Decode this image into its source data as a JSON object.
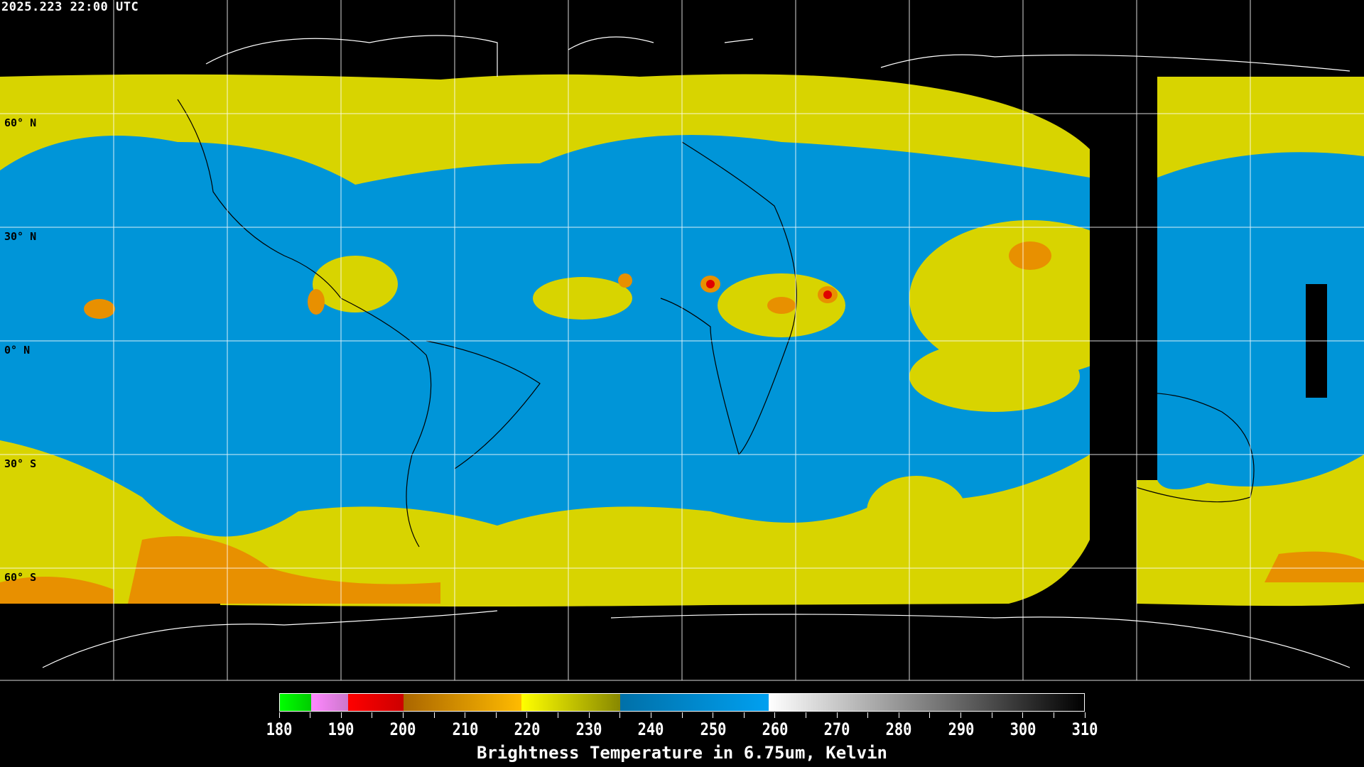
{
  "timestamp": "2025.223 22:00 UTC",
  "map": {
    "projection": "equirectangular",
    "gridlines": "30 degree",
    "lat_labels": [
      "60° N",
      "30° N",
      "0° N",
      "30° S",
      "60° S"
    ],
    "colors": {
      "background": "#000000",
      "grid": "#ffffff",
      "coast_land": "#ffffff",
      "coast_data": "#000000",
      "moist": "#0095d8",
      "dry": "#d8d400",
      "cold": "#e89000",
      "coldest": "#e00000"
    }
  },
  "colorbar": {
    "title": "Brightness Temperature in 6.75um, Kelvin",
    "ticks": [
      "180",
      "190",
      "200",
      "210",
      "220",
      "230",
      "240",
      "250",
      "260",
      "270",
      "280",
      "290",
      "300",
      "310"
    ],
    "range": [
      180,
      310
    ],
    "segments": [
      {
        "from": 180,
        "to": 185,
        "colors": [
          "#00ff00",
          "#00cc00"
        ]
      },
      {
        "from": 185,
        "to": 191,
        "colors": [
          "#ff88ff",
          "#cc77cc"
        ]
      },
      {
        "from": 191,
        "to": 200,
        "colors": [
          "#ff0000",
          "#cc0000"
        ]
      },
      {
        "from": 200,
        "to": 219,
        "colors": [
          "#aa6600",
          "#ffbb00"
        ]
      },
      {
        "from": 219,
        "to": 235,
        "colors": [
          "#ffff00",
          "#888800"
        ]
      },
      {
        "from": 235,
        "to": 259,
        "colors": [
          "#0070a8",
          "#00a0f0"
        ]
      },
      {
        "from": 259,
        "to": 310,
        "colors": [
          "#ffffff",
          "#000000"
        ]
      }
    ]
  }
}
